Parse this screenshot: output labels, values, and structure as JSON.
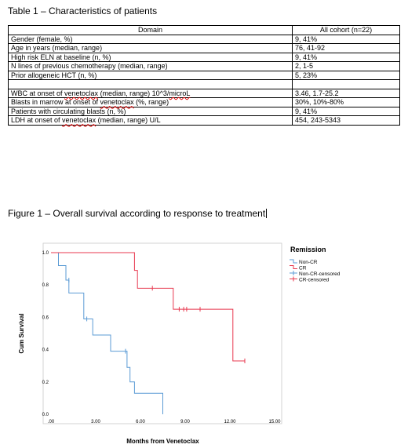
{
  "table": {
    "caption": "Table 1 – Characteristics of patients",
    "header": [
      "Domain",
      "All cohort (n=22)"
    ],
    "rows": [
      [
        "Gender (female, %)",
        "9, 41%"
      ],
      [
        "Age in years (median, range)",
        "76, 41-92"
      ],
      [
        "High risk ELN at baseline (n, %)",
        "9, 41%"
      ],
      [
        "N lines of previous chemotherapy (median, range)",
        "2, 1-5"
      ],
      [
        "Prior allogeneic HCT (n, %)",
        "5, 23%"
      ],
      [
        "",
        ""
      ],
      [
        "WBC at onset of venetoclax (median, range) 10^3/microL",
        "3.46, 1.7-25.2"
      ],
      [
        "Blasts in marrow at onset of venetoclax (%, range)",
        "30%, 10%-80%"
      ],
      [
        "Patients with circulating blasts (n, %)",
        "9, 41%"
      ],
      [
        "LDH at onset of venetoclax (median, range) U/L",
        "454, 243-5343"
      ]
    ]
  },
  "figure": {
    "caption": "Figure 1 – Overall survival according to response to treatment"
  },
  "chart_data": {
    "type": "line",
    "title": "",
    "xlabel": "Months from Venetoclax",
    "ylabel": "Cum Survival",
    "xlim": [
      0,
      15
    ],
    "ylim": [
      0,
      1
    ],
    "x_ticks": [
      0,
      3,
      6,
      9,
      12,
      15
    ],
    "x_tick_labels": [
      ".00",
      "3.00",
      "6.00",
      "9.00",
      "12.00",
      "15.00"
    ],
    "y_ticks": [
      0,
      0.2,
      0.4,
      0.6,
      0.8,
      1.0
    ],
    "y_tick_labels": [
      "0.0",
      "0.2",
      "0.4",
      "0.6",
      "0.8",
      "1.0"
    ],
    "grid": false,
    "legend": {
      "title": "Remission",
      "position": "right",
      "entries": [
        "Non-CR",
        "CR",
        "Non-CR-censored",
        "CR-censored"
      ]
    },
    "series": [
      {
        "name": "Non-CR",
        "color": "#5b9bd5",
        "steps": [
          [
            0,
            1.0
          ],
          [
            0.5,
            0.92
          ],
          [
            1.0,
            0.83
          ],
          [
            1.2,
            0.75
          ],
          [
            2.2,
            0.59
          ],
          [
            2.8,
            0.49
          ],
          [
            4.0,
            0.39
          ],
          [
            5.1,
            0.29
          ],
          [
            5.3,
            0.2
          ],
          [
            5.6,
            0.13
          ],
          [
            7.5,
            0.0
          ]
        ],
        "censored": [
          [
            1.2,
            0.83
          ],
          [
            2.4,
            0.59
          ],
          [
            5.0,
            0.39
          ]
        ]
      },
      {
        "name": "CR",
        "color": "#e8384f",
        "steps": [
          [
            0,
            1.0
          ],
          [
            5.6,
            0.89
          ],
          [
            5.8,
            0.78
          ],
          [
            8.2,
            0.65
          ],
          [
            10.0,
            0.65
          ],
          [
            12.2,
            0.33
          ],
          [
            13.0,
            0.33
          ]
        ],
        "censored": [
          [
            6.8,
            0.78
          ],
          [
            8.6,
            0.65
          ],
          [
            8.9,
            0.65
          ],
          [
            9.1,
            0.65
          ],
          [
            10.0,
            0.65
          ],
          [
            13.0,
            0.33
          ]
        ]
      }
    ]
  }
}
